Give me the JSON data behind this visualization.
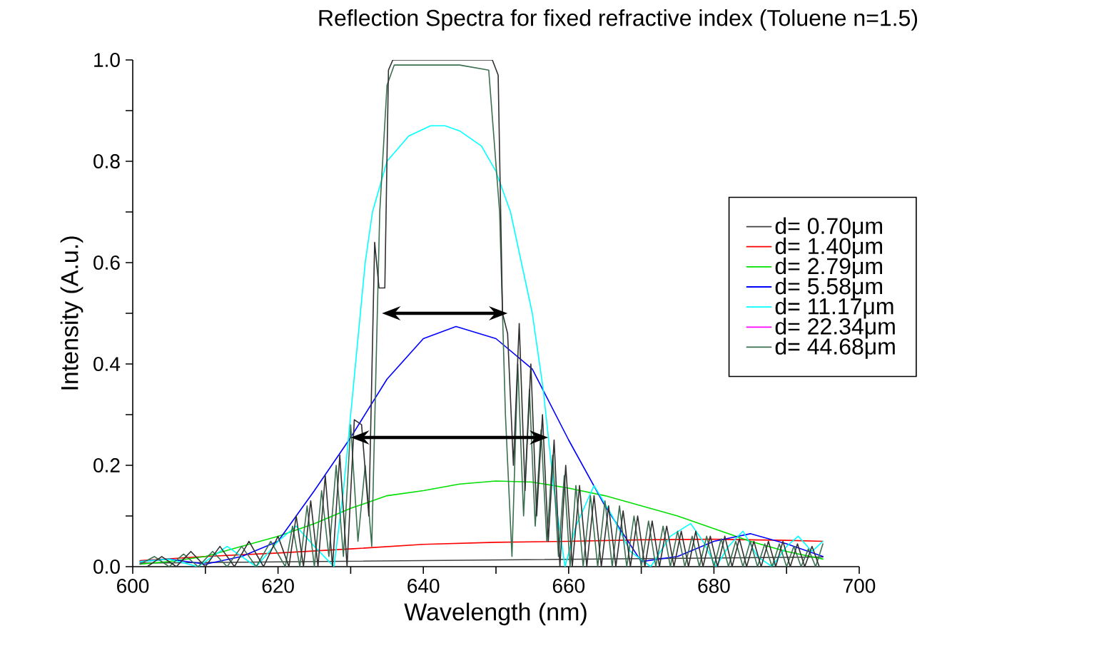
{
  "chart_data": {
    "type": "line",
    "title": "Reflection Spectra for fixed refractive index (Toluene n=1.5)",
    "xlabel": "Wavelength (nm)",
    "ylabel": "Intensity (A.u.)",
    "xlim": [
      600,
      700
    ],
    "ylim": [
      0,
      1.0
    ],
    "xticks": [
      {
        "value": 600,
        "label": "600"
      },
      {
        "value": 610,
        "label": null
      },
      {
        "value": 620,
        "label": "620"
      },
      {
        "value": 630,
        "label": null
      },
      {
        "value": 640,
        "label": "640"
      },
      {
        "value": 650,
        "label": null
      },
      {
        "value": 660,
        "label": "660"
      },
      {
        "value": 670,
        "label": null
      },
      {
        "value": 680,
        "label": "680"
      },
      {
        "value": 690,
        "label": null
      },
      {
        "value": 700,
        "label": "700"
      }
    ],
    "yticks": [
      {
        "value": 0,
        "label": "0.0"
      },
      {
        "value": 0.1,
        "label": null
      },
      {
        "value": 0.2,
        "label": "0.2"
      },
      {
        "value": 0.3,
        "label": null
      },
      {
        "value": 0.4,
        "label": "0.4"
      },
      {
        "value": 0.5,
        "label": null
      },
      {
        "value": 0.6,
        "label": "0.6"
      },
      {
        "value": 0.7,
        "label": null
      },
      {
        "value": 0.8,
        "label": "0.8"
      },
      {
        "value": 0.9,
        "label": null
      },
      {
        "value": 1.0,
        "label": "1.0"
      }
    ],
    "grid": false,
    "legend": "right",
    "marker": "none",
    "line_style": "solid",
    "series": [
      {
        "name": "d= 0.70μm",
        "color": "#404040",
        "x": [
          601,
          695
        ],
        "values": [
          0.007,
          0.019
        ]
      },
      {
        "name": "d= 1.40μm",
        "color": "#ff0000",
        "x": [
          601,
          610,
          620,
          630,
          640,
          650,
          660,
          670,
          680,
          690,
          695
        ],
        "values": [
          0.012,
          0.02,
          0.027,
          0.035,
          0.044,
          0.048,
          0.05,
          0.053,
          0.054,
          0.052,
          0.05
        ]
      },
      {
        "name": "d= 2.79μm",
        "color": "#00e000",
        "x": [
          601,
          605,
          610,
          615,
          620,
          625,
          630,
          635,
          640,
          645,
          650,
          655,
          660,
          665,
          670,
          675,
          680,
          685,
          690,
          695
        ],
        "values": [
          0.005,
          0.01,
          0.02,
          0.04,
          0.06,
          0.085,
          0.115,
          0.14,
          0.15,
          0.163,
          0.169,
          0.167,
          0.155,
          0.14,
          0.12,
          0.1,
          0.075,
          0.05,
          0.03,
          0.015
        ]
      },
      {
        "name": "d= 5.58μm",
        "color": "#0000ff",
        "x": [
          601,
          605,
          610,
          615,
          620,
          625,
          630,
          635,
          640,
          644.5,
          650,
          655,
          660,
          665,
          670,
          675,
          680,
          685,
          690,
          695
        ],
        "values": [
          0.01,
          0.015,
          0.005,
          0.02,
          0.05,
          0.15,
          0.255,
          0.37,
          0.45,
          0.474,
          0.45,
          0.39,
          0.25,
          0.12,
          0.01,
          0.02,
          0.05,
          0.065,
          0.045,
          0.02
        ]
      },
      {
        "name": "d= 11.17μm",
        "color": "#00ffff",
        "x": [
          601,
          605,
          609,
          613,
          617,
          620,
          622.5,
          625,
          627.7,
          629,
          630,
          631,
          632,
          633,
          635,
          638,
          641,
          643,
          645,
          648,
          650,
          652,
          653.5,
          655,
          656.5,
          658,
          659.5,
          661,
          663.5,
          666,
          668.5,
          671.3,
          674,
          676.8,
          678.5,
          680.3,
          682,
          684,
          686,
          688,
          690,
          691.6,
          693.5,
          695
        ],
        "values": [
          0.01,
          0.015,
          0.0,
          0.04,
          0.0,
          0.05,
          0.08,
          0.04,
          0.0,
          0.15,
          0.3,
          0.45,
          0.6,
          0.7,
          0.8,
          0.85,
          0.87,
          0.87,
          0.86,
          0.83,
          0.78,
          0.7,
          0.6,
          0.5,
          0.35,
          0.15,
          0.0,
          0.08,
          0.16,
          0.1,
          0.03,
          0.0,
          0.06,
          0.085,
          0.05,
          0.0,
          0.04,
          0.07,
          0.02,
          0.0,
          0.04,
          0.06,
          0.03,
          0.05
        ]
      },
      {
        "name": "d= 22.34μm",
        "color": "#ff00ff",
        "values": [
          null
        ]
      },
      {
        "name": "d= 44.68μm",
        "color": "#3a7050",
        "x": [
          601,
          603,
          605,
          607,
          609,
          611,
          613,
          615,
          617,
          619,
          621,
          622,
          623,
          624,
          625,
          626,
          627,
          628,
          629,
          630,
          631,
          632,
          632.9,
          634,
          635,
          636,
          640,
          645,
          649,
          650.5,
          651.3,
          652.2,
          653,
          653.8,
          654.6,
          655.4,
          656.2,
          657,
          657.8,
          658.6,
          659.4,
          660.2,
          661,
          662,
          663,
          664,
          665,
          666,
          667,
          668,
          669,
          670,
          671,
          672,
          673,
          674,
          675,
          676,
          677,
          678,
          679,
          680,
          681,
          682,
          683,
          684,
          685,
          686,
          687,
          688,
          689,
          690,
          691,
          692,
          693,
          694,
          695
        ],
        "values": [
          0.005,
          0.02,
          0.0,
          0.025,
          0.0,
          0.03,
          0.0,
          0.04,
          0.0,
          0.05,
          0.0,
          0.08,
          0.0,
          0.12,
          0.0,
          0.15,
          0.02,
          0.2,
          0.02,
          0.28,
          0.05,
          0.2,
          0.04,
          0.7,
          0.95,
          0.99,
          0.99,
          0.99,
          0.98,
          0.7,
          0.3,
          0.02,
          0.4,
          0.1,
          0.35,
          0.08,
          0.27,
          0.05,
          0.22,
          0.02,
          0.18,
          0.0,
          0.16,
          0.0,
          0.14,
          0.0,
          0.13,
          0.0,
          0.12,
          0.0,
          0.1,
          0.0,
          0.09,
          0.0,
          0.08,
          0.0,
          0.07,
          0.0,
          0.06,
          0.0,
          0.06,
          0.0,
          0.055,
          0.0,
          0.05,
          0.0,
          0.05,
          0.0,
          0.045,
          0.0,
          0.045,
          0.0,
          0.04,
          0.0,
          0.035,
          0.0,
          0.045
        ]
      },
      {
        "color": "#303030",
        "x": [
          602,
          604,
          606,
          608,
          610,
          612,
          614,
          616,
          618,
          620,
          621.5,
          622.5,
          623.5,
          624.5,
          625.5,
          626.5,
          627.5,
          628.5,
          629.5,
          630.5,
          631.5,
          632.5,
          633.3,
          633.9,
          634.7,
          635.2,
          635.8,
          640,
          645,
          649.5,
          650.3,
          650.9,
          651.6,
          652.4,
          653.2,
          654,
          654.8,
          655.6,
          656.4,
          657.2,
          658,
          658.8,
          659.6,
          660.5,
          661.5,
          662.5,
          663.5,
          664.5,
          665.5,
          666.5,
          667.5,
          668.5,
          669.5,
          670.5,
          671.5,
          672.5,
          673.5,
          674.5,
          675.5,
          676.5,
          677.5,
          678.5,
          679.5,
          680.5,
          681.5,
          682.5,
          683.5,
          684.5,
          685.5,
          686.5,
          687.5,
          688.5,
          689.5,
          690.5,
          691.5,
          692.5,
          693.5,
          694.5
        ],
        "values": [
          0.0,
          0.02,
          0.0,
          0.03,
          0.0,
          0.04,
          0.0,
          0.05,
          0.0,
          0.06,
          0.0,
          0.1,
          0.0,
          0.13,
          0.0,
          0.18,
          0.0,
          0.22,
          0.0,
          0.29,
          0.28,
          0.1,
          0.64,
          0.55,
          0.55,
          0.98,
          1.0,
          1.0,
          1.0,
          1.0,
          0.97,
          0.5,
          0.46,
          0.2,
          0.48,
          0.15,
          0.4,
          0.1,
          0.3,
          0.05,
          0.25,
          0.0,
          0.2,
          0.0,
          0.16,
          0.0,
          0.14,
          0.0,
          0.12,
          0.0,
          0.11,
          0.0,
          0.1,
          0.0,
          0.09,
          0.0,
          0.08,
          0.0,
          0.07,
          0.0,
          0.07,
          0.0,
          0.06,
          0.0,
          0.06,
          0.0,
          0.055,
          0.0,
          0.05,
          0.0,
          0.05,
          0.0,
          0.05,
          0.0,
          0.045,
          0.0,
          0.04,
          0.0
        ]
      }
    ]
  }
}
